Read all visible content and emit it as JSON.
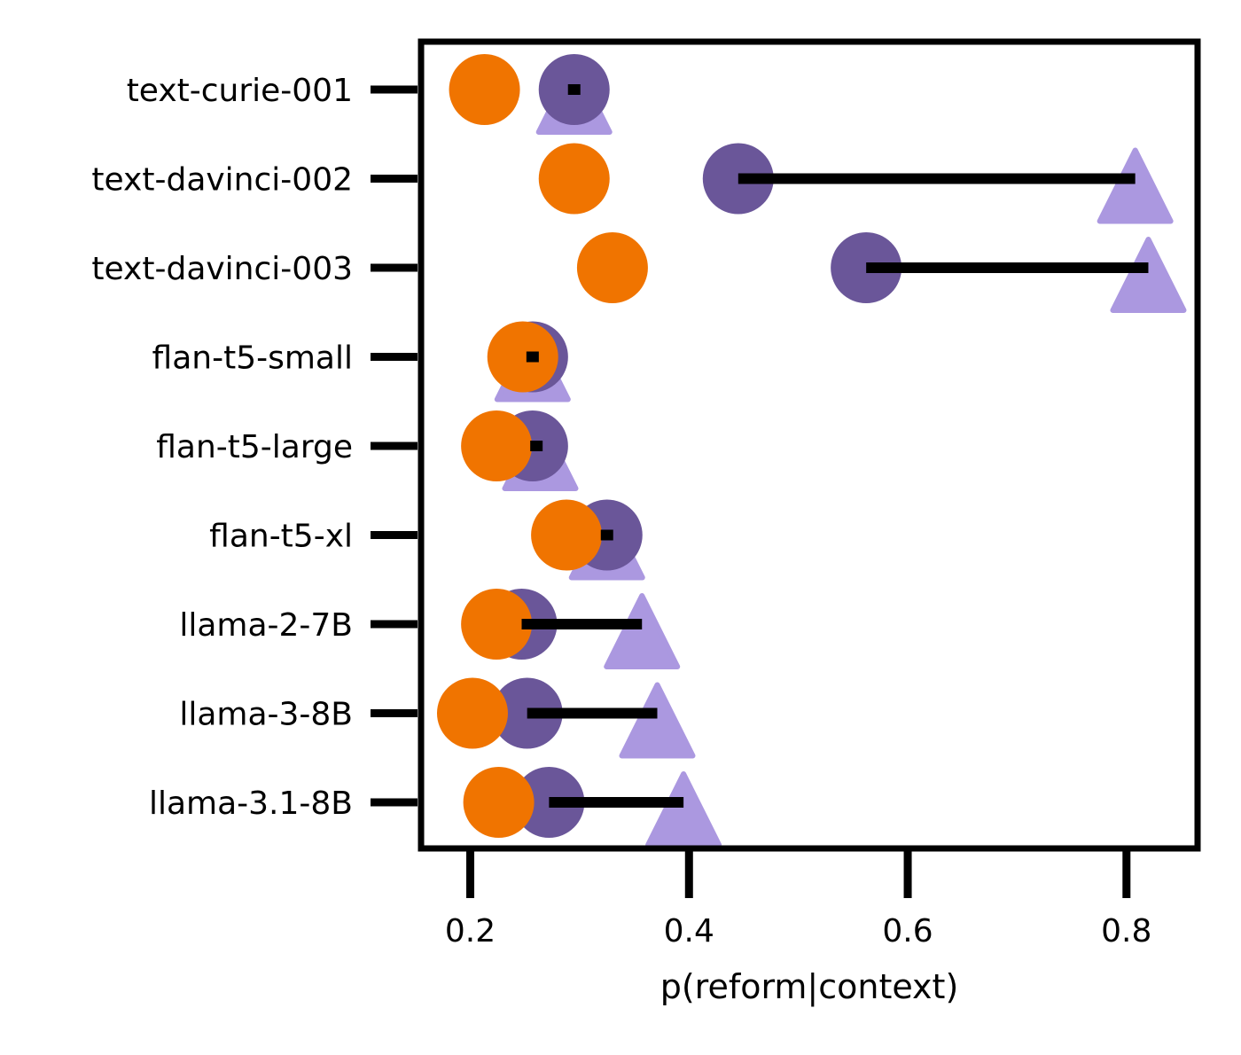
{
  "chart_data": {
    "type": "scatter",
    "xlabel": "p(reform|context)",
    "ylabel": "",
    "xlim": [
      0.155,
      0.865
    ],
    "xticks": [
      0.2,
      0.4,
      0.6,
      0.8
    ],
    "xtick_labels": [
      "0.2",
      "0.4",
      "0.6",
      "0.8"
    ],
    "categories": [
      "text-curie-001",
      "text-davinci-002",
      "text-davinci-003",
      "flan-t5-small",
      "flan-t5-large",
      "flan-t5-xl",
      "llama-2-7B",
      "llama-3-8B",
      "llama-3.1-8B"
    ],
    "series": [
      {
        "marker": "circle",
        "color": "#f07400",
        "values": [
          0.213,
          0.295,
          0.33,
          0.248,
          0.224,
          0.288,
          0.224,
          0.202,
          0.226
        ]
      },
      {
        "marker": "circle",
        "color": "#6a5699",
        "values": [
          0.295,
          0.445,
          0.562,
          0.257,
          0.257,
          0.325,
          0.247,
          0.252,
          0.272
        ]
      },
      {
        "marker": "triangle",
        "color": "#ab98e0",
        "values": [
          0.295,
          0.808,
          0.82,
          0.257,
          0.264,
          0.325,
          0.357,
          0.371,
          0.395
        ]
      }
    ],
    "ranges": {
      "color": "#000000",
      "from_series": 1,
      "to_series": 2
    },
    "grid": false,
    "legend": "none"
  }
}
